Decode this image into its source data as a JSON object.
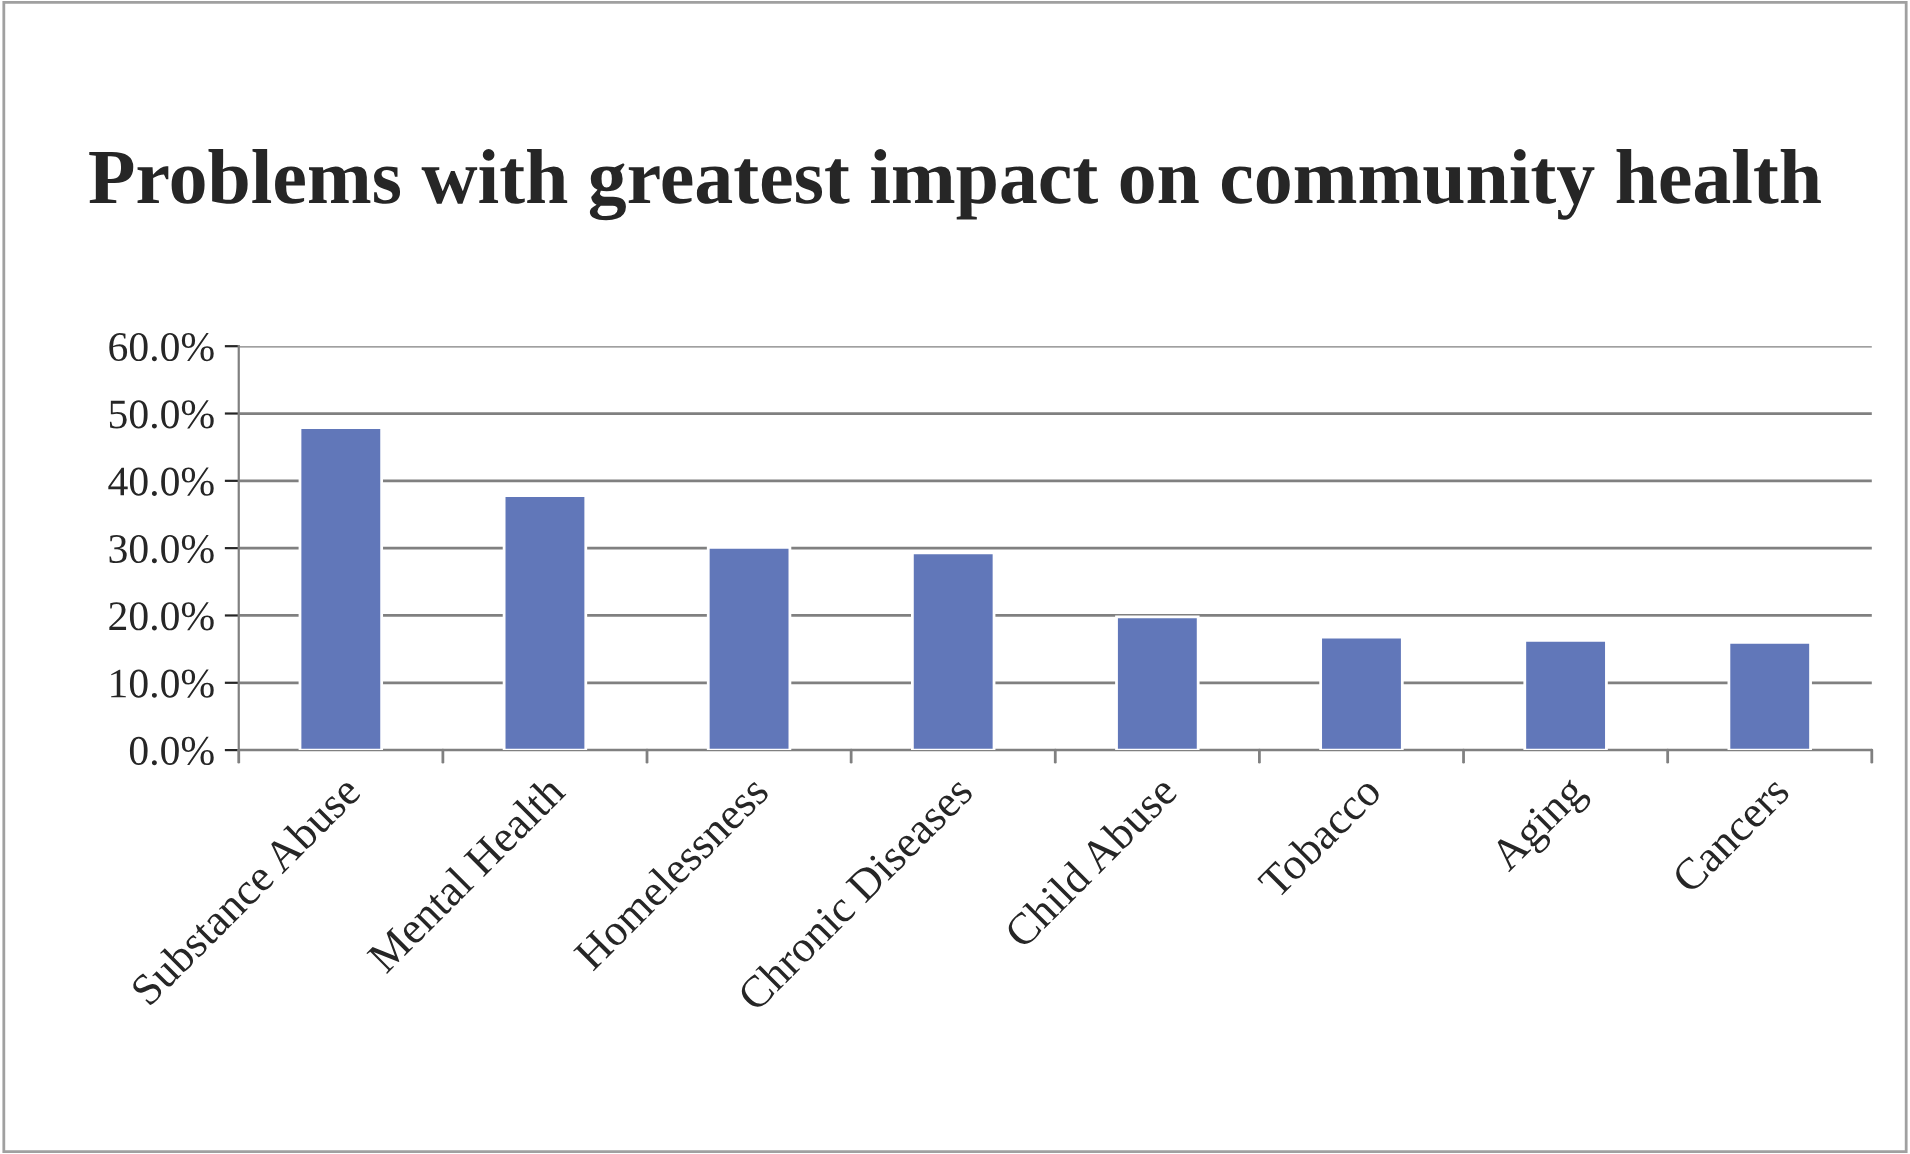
{
  "chart_data": {
    "type": "bar",
    "title": "Problems with greatest impact on community health",
    "categories": [
      "Substance Abuse",
      "Mental Health",
      "Homelessness",
      "Chronic Diseases",
      "Child Abuse",
      "Tobacco",
      "Aging",
      "Cancers"
    ],
    "values": [
      47.9,
      37.8,
      30.1,
      29.3,
      19.8,
      16.8,
      16.3,
      16.0
    ],
    "color": "#6177b9",
    "ylim": [
      0,
      60
    ],
    "yticks": [
      {
        "value": 0,
        "label": "0.0%"
      },
      {
        "value": 10,
        "label": "10.0%"
      },
      {
        "value": 20,
        "label": "20.0%"
      },
      {
        "value": 30,
        "label": "30.0%"
      },
      {
        "value": 40,
        "label": "40.0%"
      },
      {
        "value": 50,
        "label": "50.0%"
      },
      {
        "value": 60,
        "label": "60.0%"
      }
    ],
    "grid": "y"
  }
}
